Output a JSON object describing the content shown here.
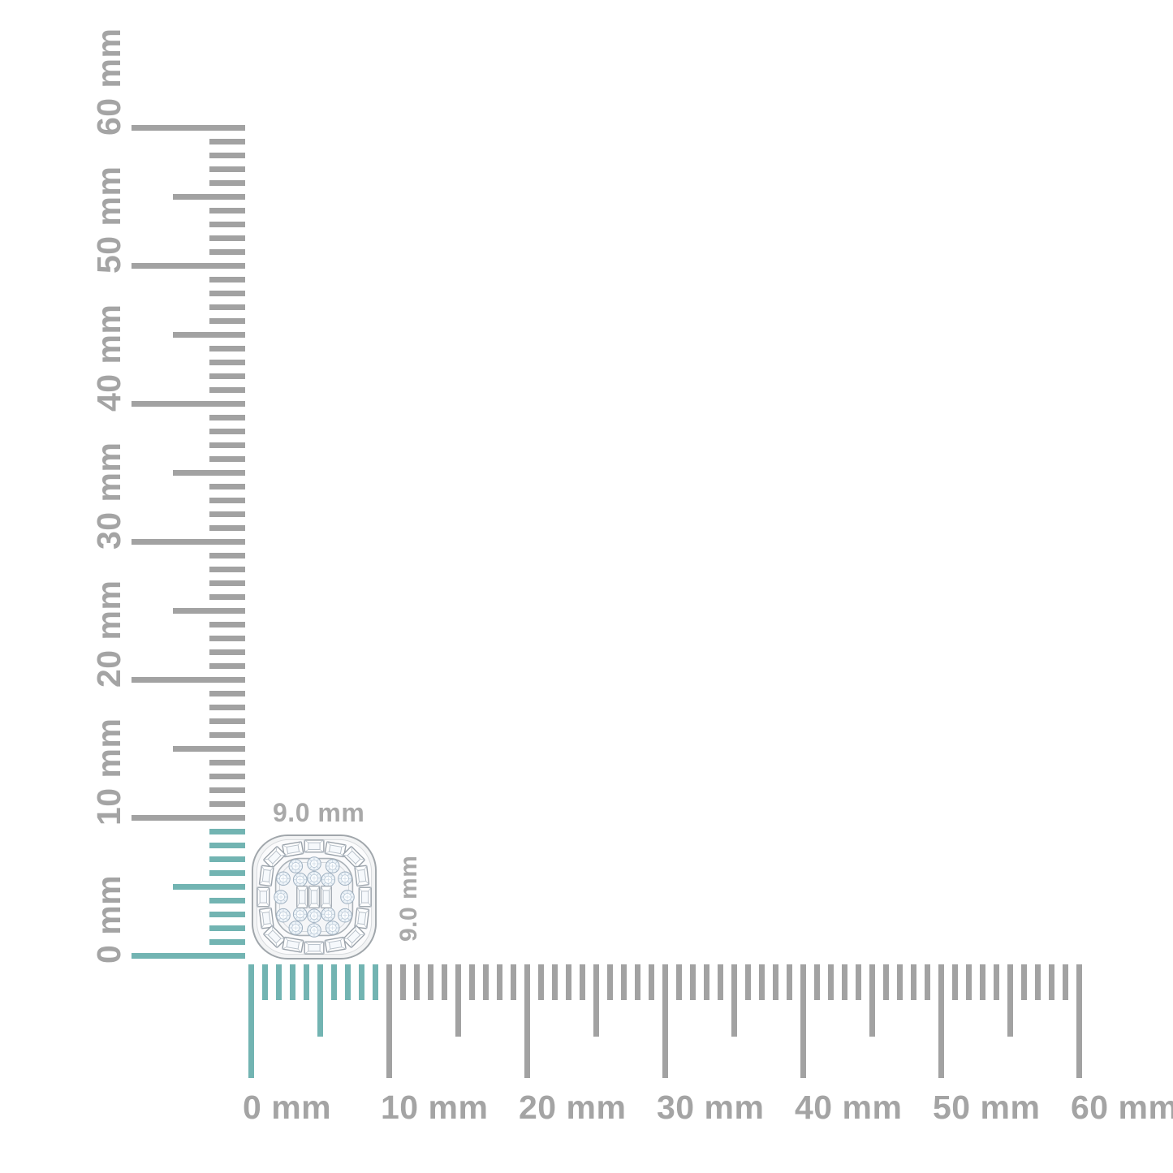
{
  "page": {
    "background": "#ffffff"
  },
  "colors": {
    "tick_gray": "#a2a2a2",
    "ruler_label_gray": "#a4a4a4",
    "highlight_teal": "#72b4b2",
    "dimension_label_gray": "#a9a9a9"
  },
  "horizontal_ruler": {
    "orientation": "horizontal",
    "unit": "mm",
    "min_mm": 0,
    "max_mm": 60,
    "major_step_mm": 10,
    "half_step_mm": 5,
    "minor_step_mm": 1,
    "highlight_range_mm": [
      0,
      9
    ],
    "major_labels": [
      "0 mm",
      "10 mm",
      "20 mm",
      "30 mm",
      "40 mm",
      "50 mm",
      "60 mm"
    ]
  },
  "vertical_ruler": {
    "orientation": "vertical",
    "unit": "mm",
    "min_mm": 0,
    "max_mm": 60,
    "major_step_mm": 10,
    "half_step_mm": 5,
    "minor_step_mm": 1,
    "highlight_range_mm": [
      0,
      9
    ],
    "major_labels": [
      "0 mm",
      "10 mm",
      "20 mm",
      "30 mm",
      "40 mm",
      "50 mm",
      "60 mm"
    ]
  },
  "product": {
    "name": "diamond-cluster-stud-earring",
    "width_label": "9.0 mm",
    "height_label": "9.0 mm",
    "width_mm": 9.0,
    "height_mm": 9.0
  }
}
